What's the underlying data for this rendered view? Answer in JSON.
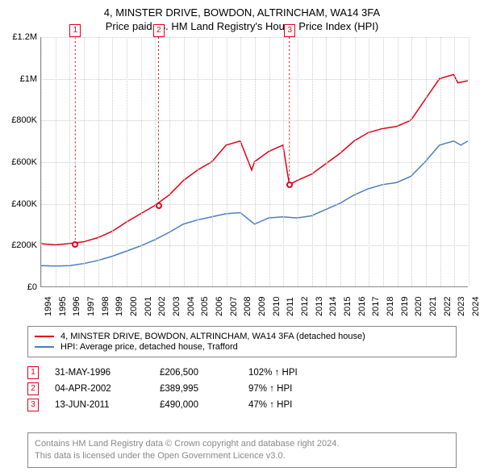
{
  "title": "4, MINSTER DRIVE, BOWDON, ALTRINCHAM, WA14 3FA",
  "subtitle": "Price paid vs. HM Land Registry's House Price Index (HPI)",
  "chart": {
    "type": "line",
    "background_color": "#ffffff",
    "grid_color": "#cccccc",
    "axis_color": "#888888",
    "x_years": [
      1994,
      1995,
      1996,
      1997,
      1998,
      1999,
      2000,
      2001,
      2002,
      2003,
      2004,
      2005,
      2006,
      2007,
      2008,
      2009,
      2010,
      2011,
      2012,
      2013,
      2014,
      2015,
      2016,
      2017,
      2018,
      2019,
      2020,
      2021,
      2022,
      2023,
      2024
    ],
    "ylim": [
      0,
      1200000
    ],
    "ytick_step": 200000,
    "ytick_labels": [
      "£0",
      "£200K",
      "£400K",
      "£600K",
      "£800K",
      "£1M",
      "£1.2M"
    ],
    "tick_fontsize": 11,
    "series": [
      {
        "name": "4, MINSTER DRIVE, BOWDON, ALTRINCHAM, WA14 3FA (detached house)",
        "color": "#e2001a",
        "line_width": 1.5,
        "data": [
          [
            1994,
            205000
          ],
          [
            1995,
            200000
          ],
          [
            1996,
            206500
          ],
          [
            1997,
            215000
          ],
          [
            1998,
            235000
          ],
          [
            1999,
            265000
          ],
          [
            2000,
            310000
          ],
          [
            2001,
            350000
          ],
          [
            2002,
            390000
          ],
          [
            2003,
            440000
          ],
          [
            2004,
            510000
          ],
          [
            2005,
            560000
          ],
          [
            2006,
            600000
          ],
          [
            2007,
            680000
          ],
          [
            2008,
            700000
          ],
          [
            2008.8,
            560000
          ],
          [
            2009,
            600000
          ],
          [
            2010,
            650000
          ],
          [
            2011,
            680000
          ],
          [
            2011.45,
            490000
          ],
          [
            2012,
            510000
          ],
          [
            2013,
            540000
          ],
          [
            2014,
            590000
          ],
          [
            2015,
            640000
          ],
          [
            2016,
            700000
          ],
          [
            2017,
            740000
          ],
          [
            2018,
            760000
          ],
          [
            2019,
            770000
          ],
          [
            2020,
            800000
          ],
          [
            2021,
            900000
          ],
          [
            2022,
            1000000
          ],
          [
            2023,
            1020000
          ],
          [
            2023.3,
            980000
          ],
          [
            2024,
            990000
          ]
        ]
      },
      {
        "name": "HPI: Average price, detached house, Trafford",
        "color": "#4a7fc4",
        "line_width": 1.5,
        "data": [
          [
            1994,
            100000
          ],
          [
            1995,
            98000
          ],
          [
            1996,
            100000
          ],
          [
            1997,
            110000
          ],
          [
            1998,
            125000
          ],
          [
            1999,
            145000
          ],
          [
            2000,
            170000
          ],
          [
            2001,
            195000
          ],
          [
            2002,
            225000
          ],
          [
            2003,
            260000
          ],
          [
            2004,
            300000
          ],
          [
            2005,
            320000
          ],
          [
            2006,
            335000
          ],
          [
            2007,
            350000
          ],
          [
            2008,
            355000
          ],
          [
            2009,
            300000
          ],
          [
            2010,
            330000
          ],
          [
            2011,
            335000
          ],
          [
            2012,
            330000
          ],
          [
            2013,
            340000
          ],
          [
            2014,
            370000
          ],
          [
            2015,
            400000
          ],
          [
            2016,
            440000
          ],
          [
            2017,
            470000
          ],
          [
            2018,
            490000
          ],
          [
            2019,
            500000
          ],
          [
            2020,
            530000
          ],
          [
            2021,
            600000
          ],
          [
            2022,
            680000
          ],
          [
            2023,
            700000
          ],
          [
            2023.5,
            680000
          ],
          [
            2024,
            700000
          ]
        ]
      }
    ],
    "event_markers": [
      {
        "n": "1",
        "x": 1996.4,
        "y": 206500,
        "color": "#e2001a"
      },
      {
        "n": "2",
        "x": 2002.25,
        "y": 389995,
        "color": "#e2001a"
      },
      {
        "n": "3",
        "x": 2011.45,
        "y": 490000,
        "color": "#e2001a"
      }
    ]
  },
  "legend": {
    "items": [
      {
        "color": "#e2001a",
        "label": "4, MINSTER DRIVE, BOWDON, ALTRINCHAM, WA14 3FA (detached house)"
      },
      {
        "color": "#4a7fc4",
        "label": "HPI: Average price, detached house, Trafford"
      }
    ]
  },
  "events": [
    {
      "n": "1",
      "color": "#e2001a",
      "date": "31-MAY-1996",
      "price": "£206,500",
      "pct": "102% ↑ HPI"
    },
    {
      "n": "2",
      "color": "#e2001a",
      "date": "04-APR-2002",
      "price": "£389,995",
      "pct": "97% ↑ HPI"
    },
    {
      "n": "3",
      "color": "#e2001a",
      "date": "13-JUN-2011",
      "price": "£490,000",
      "pct": "47% ↑ HPI"
    }
  ],
  "footer": {
    "line1": "Contains HM Land Registry data © Crown copyright and database right 2024.",
    "line2": "This data is licensed under the Open Government Licence v3.0.",
    "color": "#888888"
  }
}
